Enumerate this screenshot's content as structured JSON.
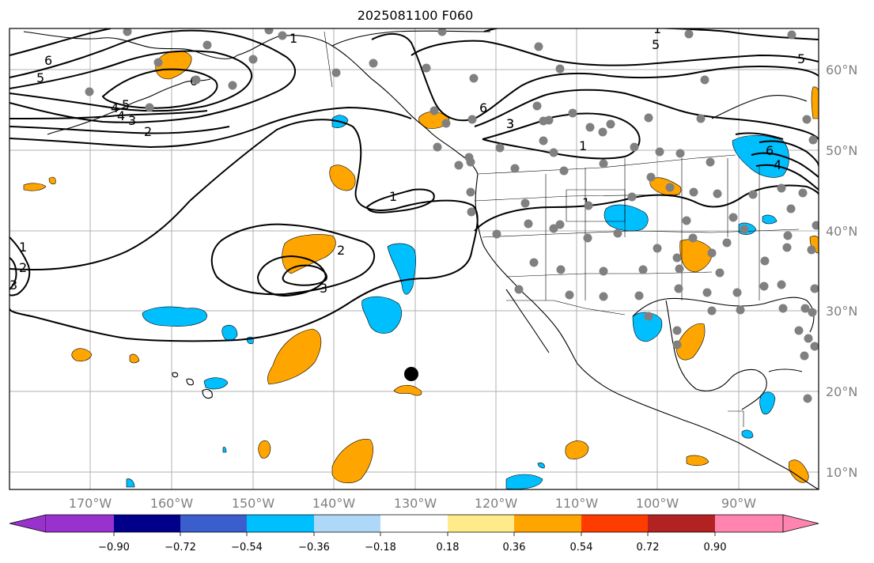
{
  "title": "2025081100 F060",
  "map": {
    "lon_labels": [
      "170°W",
      "160°W",
      "150°W",
      "140°W",
      "130°W",
      "120°W",
      "110°W",
      "100°W",
      "90°W"
    ],
    "lat_labels": [
      "60°N",
      "50°N",
      "40°N",
      "30°N",
      "20°N",
      "10°N"
    ],
    "contour_labels": [
      "6",
      "5",
      "4",
      "3",
      "2",
      "1",
      "6",
      "5",
      "4",
      "3",
      "6",
      "5",
      "3",
      "1",
      "6",
      "5",
      "4",
      "1",
      "1",
      "2",
      "3",
      "1",
      "2",
      "3",
      "1"
    ],
    "marker": "black-dot",
    "colors": {
      "positive_orange": "#ffa500",
      "negative_blue": "#00bfff",
      "contour": "#000000",
      "station": "#808080",
      "grid": "#b0b0b0"
    }
  },
  "colorbar": {
    "ticks": [
      "−0.90",
      "−0.72",
      "−0.54",
      "−0.36",
      "−0.18",
      "0.18",
      "0.36",
      "0.54",
      "0.72",
      "0.90"
    ],
    "colors": [
      "#9932cc",
      "#00008b",
      "#3a5fcd",
      "#00bfff",
      "#add8f7",
      "#ffffff",
      "#ffeb8a",
      "#ffa500",
      "#ff3c00",
      "#b22222",
      "#ff85b0"
    ]
  }
}
